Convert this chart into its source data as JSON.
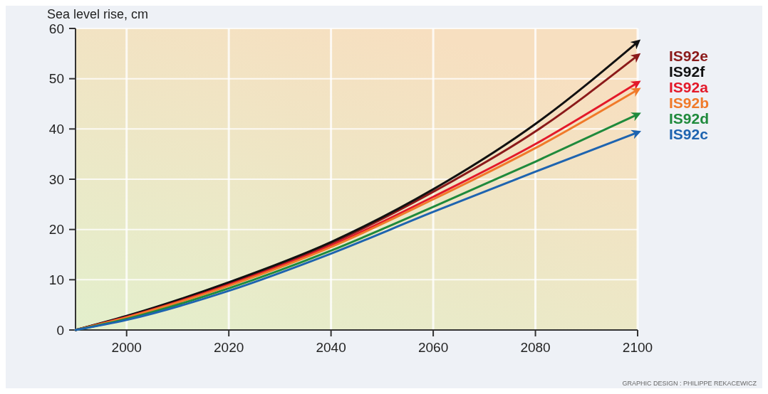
{
  "chart_data": {
    "type": "line",
    "ylabel": "Sea level rise, cm",
    "x": [
      1990,
      2000,
      2020,
      2040,
      2060,
      2080,
      2100
    ],
    "xlim": [
      1990,
      2100
    ],
    "xticks": [
      2000,
      2020,
      2040,
      2060,
      2080,
      2100
    ],
    "ylim": [
      0,
      60
    ],
    "yticks": [
      0,
      10,
      20,
      30,
      40,
      50,
      60
    ],
    "grid": true,
    "marker": "none",
    "line_style": "solid",
    "annotations": [
      "GRAPHIC DESIGN : PHILIPPE REKACEWICZ"
    ],
    "series": [
      {
        "name": "IS92e",
        "color": "#8b1a1a",
        "values": [
          0,
          2.7,
          9.3,
          17.2,
          27.5,
          39.5,
          54.6
        ]
      },
      {
        "name": "IS92f",
        "color": "#111111",
        "values": [
          0,
          2.8,
          9.5,
          17.5,
          28,
          41,
          57.3
        ]
      },
      {
        "name": "IS92a",
        "color": "#e3192a",
        "values": [
          0,
          2.6,
          9.0,
          16.8,
          26.5,
          37,
          49.2
        ]
      },
      {
        "name": "IS92b",
        "color": "#f07a2a",
        "values": [
          0,
          2.5,
          8.8,
          16.5,
          26,
          36.2,
          47.8
        ]
      },
      {
        "name": "IS92d",
        "color": "#1f8a3c",
        "values": [
          0,
          2.2,
          8.3,
          15.8,
          24.5,
          33.5,
          42.9
        ]
      },
      {
        "name": "IS92c",
        "color": "#1e64b0",
        "values": [
          0,
          2.0,
          7.8,
          15.2,
          23.5,
          31.5,
          39.3
        ]
      }
    ]
  }
}
